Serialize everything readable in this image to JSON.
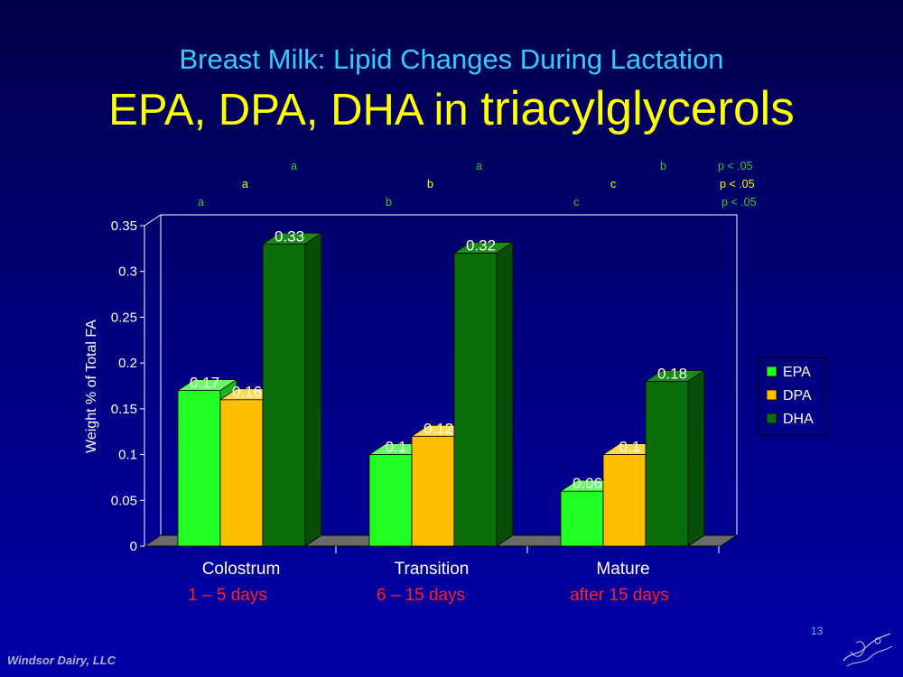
{
  "subtitle": "Breast Milk: Lipid Changes During Lactation",
  "title_part1": "EPA, DPA, DHA in ",
  "title_part2": "triacylglycerols",
  "significance": {
    "dha_row": {
      "labels": [
        "a",
        "a",
        "b"
      ],
      "p": "p < .05",
      "color": "#33cc33"
    },
    "dpa_row": {
      "labels": [
        "a",
        "b",
        "c"
      ],
      "p": "p < .05",
      "color": "#ffff00"
    },
    "epa_row": {
      "labels": [
        "a",
        "b",
        "c"
      ],
      "p": "p < .05",
      "color": "#33cc33"
    }
  },
  "categories_sub": [
    "1 – 5 days",
    "6 – 15 days",
    "after 15 days"
  ],
  "footer": "Windsor Dairy, LLC",
  "page_number": "13",
  "chart_data": {
    "type": "bar",
    "categories": [
      "Colostrum",
      "Transition",
      "Mature"
    ],
    "series": [
      {
        "name": "EPA",
        "values": [
          0.17,
          0.1,
          0.06
        ],
        "color": "#22ff22",
        "side": "#18b818",
        "top": "#66ff66",
        "labels": [
          "0.17",
          "0.1",
          "0.06"
        ]
      },
      {
        "name": "DPA",
        "values": [
          0.16,
          0.12,
          0.1
        ],
        "color": "#ffbf00",
        "side": "#c08800",
        "top": "#ffd94d",
        "labels": [
          "0.16",
          "0.12",
          "0.1"
        ]
      },
      {
        "name": "DHA",
        "values": [
          0.33,
          0.32,
          0.18
        ],
        "color": "#0a6e0a",
        "side": "#074e07",
        "top": "#1a8a1a",
        "labels": [
          "0.33",
          "0.32",
          "0.18"
        ]
      }
    ],
    "ylabel": "Weight % of Total FA",
    "xlabel": "",
    "ylim": [
      0,
      0.35
    ],
    "yticks": [
      "0",
      "0.05",
      "0.1",
      "0.15",
      "0.2",
      "0.25",
      "0.3",
      "0.35"
    ],
    "legend_position": "right",
    "grid": false
  }
}
